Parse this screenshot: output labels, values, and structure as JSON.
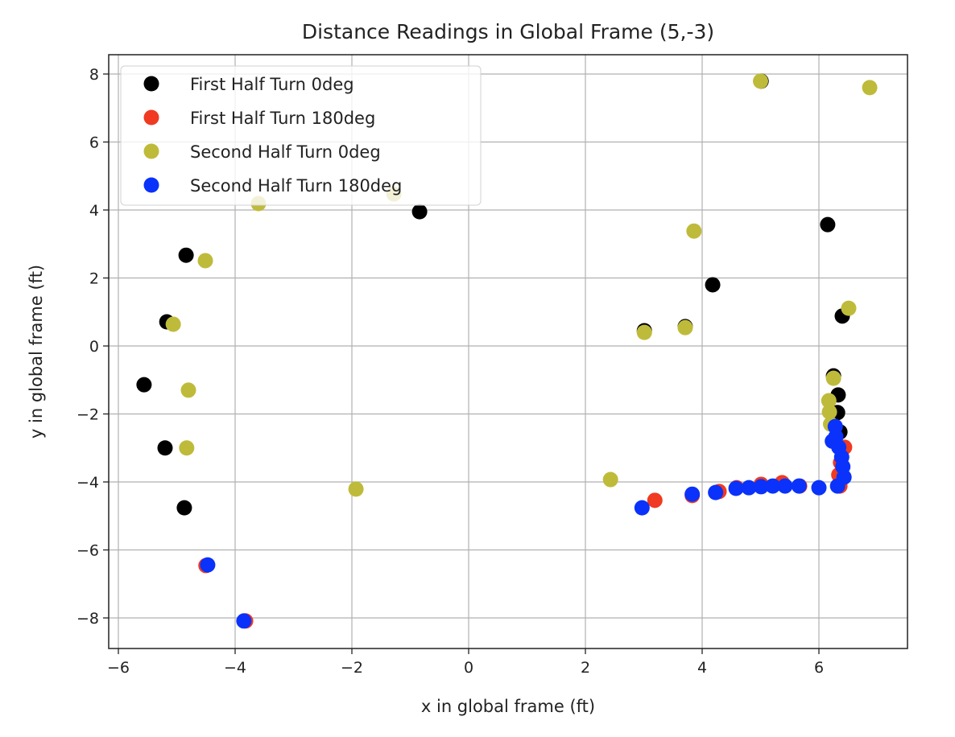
{
  "chart_data": {
    "type": "scatter",
    "title": "Distance Readings in Global Frame (5,-3)",
    "xlabel": "x in global frame (ft)",
    "ylabel": "y in global frame (ft)",
    "xlim": [
      -6.15,
      7.5
    ],
    "ylim": [
      -8.9,
      8.6
    ],
    "xticks": [
      -6,
      -4,
      -2,
      0,
      2,
      4,
      6
    ],
    "yticks": [
      -8,
      -6,
      -4,
      -2,
      0,
      2,
      4,
      6,
      8
    ],
    "xtick_labels": [
      "−6",
      "−4",
      "−2",
      "0",
      "2",
      "4",
      "6"
    ],
    "ytick_labels": [
      "−8",
      "−6",
      "−4",
      "−2",
      "0",
      "2",
      "4",
      "6",
      "8"
    ],
    "grid": true,
    "legend_placement": "top-left",
    "series": [
      {
        "name": "First Half Turn 0deg",
        "color": "#000000",
        "points": [
          [
            -0.84,
            3.95
          ],
          [
            -4.84,
            2.67
          ],
          [
            -5.17,
            0.71
          ],
          [
            -5.56,
            -1.14
          ],
          [
            -5.2,
            -3.0
          ],
          [
            -4.87,
            -4.76
          ],
          [
            6.15,
            3.57
          ],
          [
            4.18,
            1.8
          ],
          [
            6.4,
            0.88
          ],
          [
            3.01,
            0.45
          ],
          [
            3.71,
            0.57
          ],
          [
            6.25,
            -0.88
          ],
          [
            6.33,
            -1.44
          ],
          [
            6.32,
            -1.96
          ],
          [
            6.36,
            -2.53
          ],
          [
            5.01,
            7.79
          ]
        ]
      },
      {
        "name": "First Half Turn 180deg",
        "color": "#f03a22",
        "points": [
          [
            -4.5,
            -6.46
          ],
          [
            -3.82,
            -8.09
          ],
          [
            3.19,
            -4.54
          ],
          [
            3.83,
            -4.4
          ],
          [
            4.29,
            -4.28
          ],
          [
            4.59,
            -4.17
          ],
          [
            5.01,
            -4.07
          ],
          [
            5.37,
            -4.02
          ],
          [
            5.67,
            -4.12
          ],
          [
            6.44,
            -2.98
          ],
          [
            6.37,
            -3.43
          ],
          [
            6.34,
            -3.79
          ],
          [
            6.36,
            -4.12
          ]
        ]
      },
      {
        "name": "Second Half Turn 0deg",
        "color": "#bfbb3a",
        "points": [
          [
            5.0,
            7.79
          ],
          [
            6.87,
            7.6
          ],
          [
            -1.28,
            4.47
          ],
          [
            -3.6,
            4.19
          ],
          [
            3.86,
            3.38
          ],
          [
            -4.51,
            2.51
          ],
          [
            -5.06,
            0.64
          ],
          [
            6.51,
            1.11
          ],
          [
            3.01,
            0.4
          ],
          [
            3.71,
            0.54
          ],
          [
            6.25,
            -0.95
          ],
          [
            -4.8,
            -1.3
          ],
          [
            -4.83,
            -3.0
          ],
          [
            -1.93,
            -4.21
          ],
          [
            2.43,
            -3.93
          ],
          [
            6.17,
            -1.61
          ],
          [
            6.18,
            -1.94
          ],
          [
            6.2,
            -2.3
          ]
        ]
      },
      {
        "name": "Second Half Turn 180deg",
        "color": "#0a32fa",
        "points": [
          [
            -4.47,
            -6.44
          ],
          [
            -3.85,
            -8.09
          ],
          [
            2.97,
            -4.76
          ],
          [
            3.83,
            -4.36
          ],
          [
            4.23,
            -4.31
          ],
          [
            4.58,
            -4.19
          ],
          [
            4.8,
            -4.17
          ],
          [
            5.01,
            -4.14
          ],
          [
            5.21,
            -4.12
          ],
          [
            5.42,
            -4.12
          ],
          [
            5.66,
            -4.12
          ],
          [
            6.0,
            -4.17
          ],
          [
            6.32,
            -4.12
          ],
          [
            6.43,
            -3.86
          ],
          [
            6.41,
            -3.55
          ],
          [
            6.39,
            -3.27
          ],
          [
            6.34,
            -2.98
          ],
          [
            6.29,
            -2.67
          ],
          [
            6.28,
            -2.37
          ],
          [
            6.23,
            -2.8
          ]
        ]
      }
    ]
  }
}
